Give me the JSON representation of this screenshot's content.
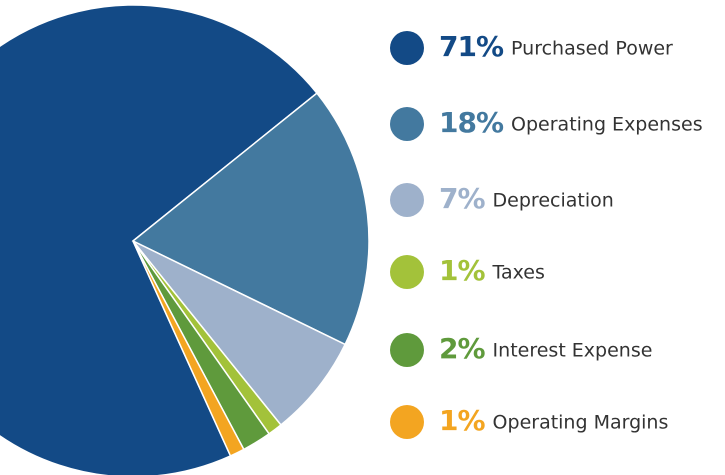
{
  "chart_data": {
    "type": "pie",
    "categories": [
      "Purchased Power",
      "Operating Expenses",
      "Depreciation",
      "Taxes",
      "Interest Expense",
      "Operating Margins"
    ],
    "values": [
      71,
      18,
      7,
      1,
      2,
      1
    ],
    "value_labels": [
      "71%",
      "18%",
      "7%",
      "1%",
      "2%",
      "1%"
    ],
    "colors": [
      "#134a86",
      "#43799f",
      "#9eb1cb",
      "#a3c23a",
      "#5f9a3c",
      "#f3a521"
    ]
  }
}
